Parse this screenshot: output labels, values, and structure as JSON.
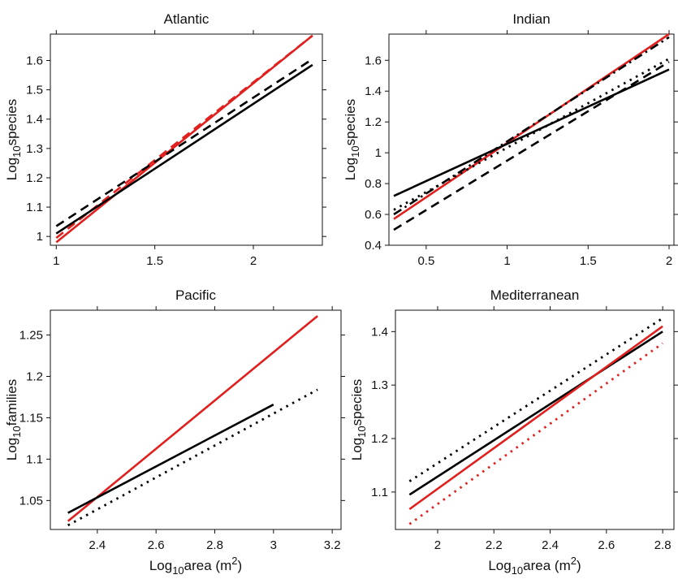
{
  "chart_data": [
    {
      "type": "line",
      "title": "Atlantic",
      "xlabel": "",
      "ylabel": {
        "base": "Log",
        "sub": "10",
        "rest": "species"
      },
      "xlim": [
        0.97,
        2.35
      ],
      "ylim": [
        0.97,
        1.69
      ],
      "x_ticks": [
        1,
        1.5,
        2
      ],
      "x_tick_labels": [
        "1",
        "1.5",
        "2"
      ],
      "y_ticks": [
        1,
        1.1,
        1.2,
        1.3,
        1.4,
        1.5,
        1.6
      ],
      "y_tick_labels": [
        "1",
        "1.1",
        "1.2",
        "1.3",
        "1.4",
        "1.5",
        "1.6"
      ],
      "series": [
        {
          "color": "#e0201e",
          "dash": "solid",
          "x": [
            1,
            2.3
          ],
          "y": [
            0.98,
            1.685
          ]
        },
        {
          "color": "#e0201e",
          "dash": "dashed",
          "x": [
            1,
            2.3
          ],
          "y": [
            0.995,
            1.685
          ]
        },
        {
          "color": "#000000",
          "dash": "solid",
          "x": [
            1,
            2.3
          ],
          "y": [
            1.01,
            1.585
          ]
        },
        {
          "color": "#000000",
          "dash": "dashed",
          "x": [
            1,
            2.3
          ],
          "y": [
            1.035,
            1.605
          ]
        }
      ]
    },
    {
      "type": "line",
      "title": "Indian",
      "xlabel": "",
      "ylabel": {
        "base": "Log",
        "sub": "10",
        "rest": "species"
      },
      "xlim": [
        0.27,
        2.03
      ],
      "ylim": [
        0.4,
        1.77
      ],
      "x_ticks": [
        0.5,
        1,
        1.5,
        2
      ],
      "x_tick_labels": [
        "0.5",
        "1",
        "1.5",
        "2"
      ],
      "y_ticks": [
        0.4,
        0.6,
        0.8,
        1,
        1.2,
        1.4,
        1.6
      ],
      "y_tick_labels": [
        "0.4",
        "0.6",
        "0.8",
        "1",
        "1.2",
        "1.4",
        "1.6"
      ],
      "series": [
        {
          "color": "#e0201e",
          "dash": "solid",
          "x": [
            0.3,
            2.0
          ],
          "y": [
            0.57,
            1.77
          ]
        },
        {
          "color": "#000000",
          "dash": "solid",
          "x": [
            0.3,
            2.0
          ],
          "y": [
            0.72,
            1.54
          ]
        },
        {
          "color": "#000000",
          "dash": "dashed",
          "x": [
            0.3,
            2.0
          ],
          "y": [
            0.5,
            1.59
          ]
        },
        {
          "color": "#000000",
          "dash": "dashdot",
          "x": [
            0.3,
            2.0
          ],
          "y": [
            0.6,
            1.75
          ]
        },
        {
          "color": "#000000",
          "dash": "dotted",
          "x": [
            0.3,
            2.0
          ],
          "y": [
            0.63,
            1.61
          ]
        }
      ]
    },
    {
      "type": "line",
      "title": "Pacific",
      "xlabel": {
        "base": "Log",
        "sub": "10",
        "rest": "area (m",
        "sup": "2",
        "tail": ")"
      },
      "ylabel": {
        "base": "Log",
        "sub": "10",
        "rest": "families"
      },
      "xlim": [
        2.24,
        3.23
      ],
      "ylim": [
        1.015,
        1.28
      ],
      "x_ticks": [
        2.4,
        2.6,
        2.8,
        3,
        3.2
      ],
      "x_tick_labels": [
        "2.4",
        "2.6",
        "2.8",
        "3",
        "3.2"
      ],
      "y_ticks": [
        1.05,
        1.1,
        1.15,
        1.2,
        1.25
      ],
      "y_tick_labels": [
        "1.05",
        "1.1",
        "1.15",
        "1.2",
        "1.25"
      ],
      "series": [
        {
          "color": "#e0201e",
          "dash": "solid",
          "x": [
            2.3,
            3.15
          ],
          "y": [
            1.025,
            1.273
          ]
        },
        {
          "color": "#000000",
          "dash": "solid",
          "x": [
            2.3,
            3.0
          ],
          "y": [
            1.035,
            1.166
          ]
        },
        {
          "color": "#000000",
          "dash": "dotted",
          "x": [
            2.3,
            3.15
          ],
          "y": [
            1.02,
            1.184
          ]
        }
      ]
    },
    {
      "type": "line",
      "title": "Mediterranean",
      "xlabel": {
        "base": "Log",
        "sub": "10",
        "rest": "area (m",
        "sup": "2",
        "tail": ")"
      },
      "ylabel": {
        "base": "Log",
        "sub": "10",
        "rest": "species"
      },
      "xlim": [
        1.85,
        2.84
      ],
      "ylim": [
        1.03,
        1.44
      ],
      "x_ticks": [
        2,
        2.2,
        2.4,
        2.6,
        2.8
      ],
      "x_tick_labels": [
        "2",
        "2.2",
        "2.4",
        "2.6",
        "2.8"
      ],
      "y_ticks": [
        1.1,
        1.2,
        1.3,
        1.4
      ],
      "y_tick_labels": [
        "1.1",
        "1.2",
        "1.3",
        "1.4"
      ],
      "series": [
        {
          "color": "#000000",
          "dash": "dotted",
          "x": [
            1.9,
            2.8
          ],
          "y": [
            1.12,
            1.425
          ]
        },
        {
          "color": "#000000",
          "dash": "solid",
          "x": [
            1.9,
            2.8
          ],
          "y": [
            1.095,
            1.4
          ]
        },
        {
          "color": "#e0201e",
          "dash": "solid",
          "x": [
            1.9,
            2.8
          ],
          "y": [
            1.068,
            1.41
          ]
        },
        {
          "color": "#e0201e",
          "dash": "dotted",
          "x": [
            1.9,
            2.8
          ],
          "y": [
            1.04,
            1.378
          ]
        }
      ]
    }
  ]
}
